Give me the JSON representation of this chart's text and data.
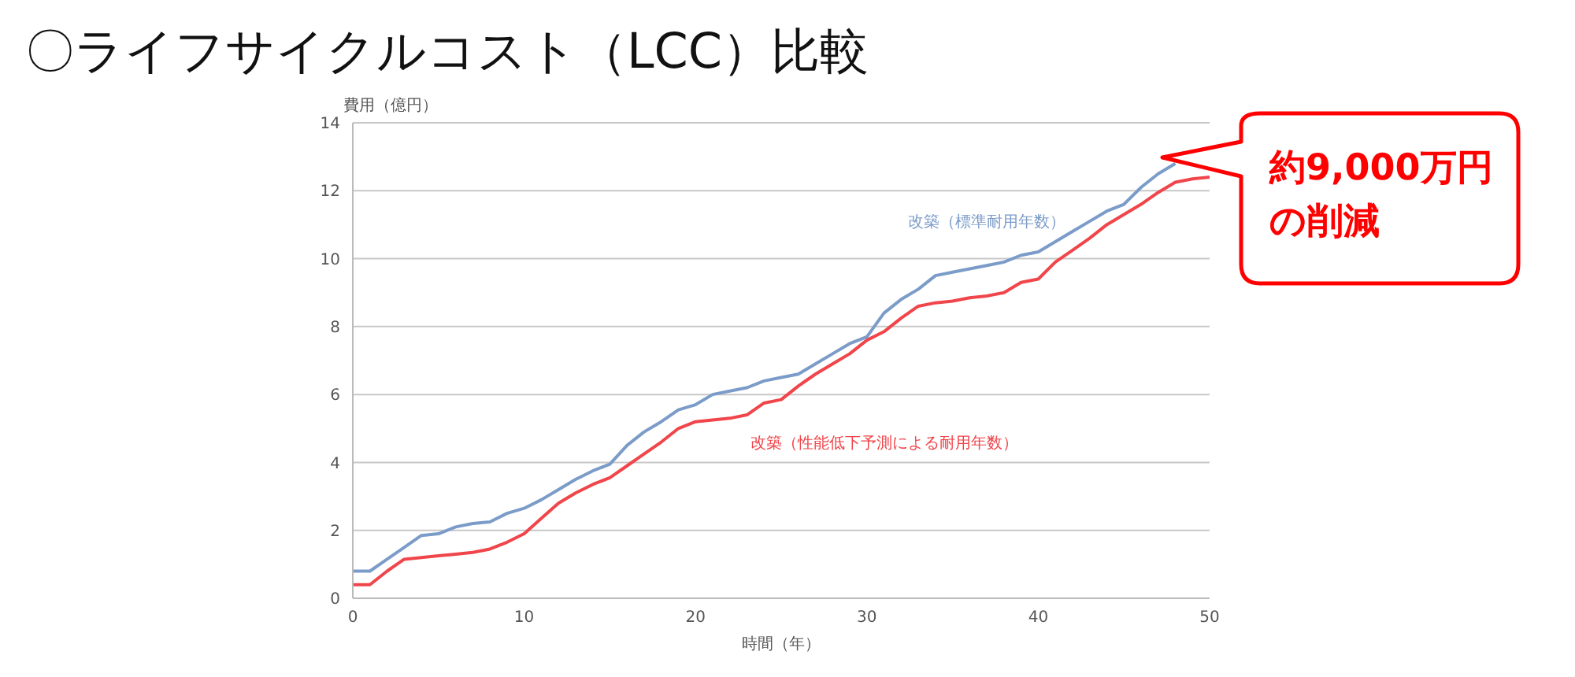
{
  "chart_data": {
    "type": "line",
    "title": "〇ライフサイクルコスト（LCC）比較",
    "xlabel": "時間（年）",
    "ylabel": "費用（億円）",
    "x": [
      0,
      1,
      2,
      3,
      4,
      5,
      6,
      7,
      8,
      9,
      10,
      11,
      12,
      13,
      14,
      15,
      16,
      17,
      18,
      19,
      20,
      21,
      22,
      23,
      24,
      25,
      26,
      27,
      28,
      29,
      30,
      31,
      32,
      33,
      34,
      35,
      36,
      37,
      38,
      39,
      40,
      41,
      42,
      43,
      44,
      45,
      46,
      47,
      48,
      49,
      50
    ],
    "series": [
      {
        "name": "改築（標準耐用年数）",
        "color": "#7b9cc9",
        "values": [
          0.8,
          0.8,
          1.15,
          1.5,
          1.85,
          1.9,
          2.1,
          2.2,
          2.25,
          2.5,
          2.65,
          2.9,
          3.2,
          3.5,
          3.75,
          3.95,
          4.5,
          4.9,
          5.2,
          5.55,
          5.7,
          6.0,
          6.1,
          6.2,
          6.4,
          6.5,
          6.6,
          6.9,
          7.2,
          7.5,
          7.7,
          8.4,
          8.8,
          9.1,
          9.5,
          9.6,
          9.7,
          9.8,
          9.9,
          10.1,
          10.2,
          10.5,
          10.8,
          11.1,
          11.4,
          11.6,
          12.1,
          12.5,
          12.8,
          null,
          null
        ]
      },
      {
        "name": "改築（性能低下予測による耐用年数）",
        "color": "#f0454a",
        "values": [
          0.4,
          0.4,
          0.8,
          1.15,
          1.2,
          1.25,
          1.3,
          1.35,
          1.45,
          1.65,
          1.9,
          2.35,
          2.8,
          3.1,
          3.35,
          3.55,
          3.9,
          4.25,
          4.6,
          5.0,
          5.2,
          5.25,
          5.3,
          5.4,
          5.75,
          5.85,
          6.25,
          6.6,
          6.9,
          7.2,
          7.6,
          7.85,
          8.25,
          8.6,
          8.7,
          8.75,
          8.85,
          8.9,
          9.0,
          9.3,
          9.4,
          9.9,
          10.25,
          10.6,
          11.0,
          11.3,
          11.6,
          11.95,
          12.25,
          12.35,
          12.4
        ]
      }
    ],
    "xlim": [
      0,
      50
    ],
    "xticks": [
      0,
      10,
      20,
      30,
      40,
      50
    ],
    "ylim": [
      0,
      14
    ],
    "yticks": [
      0,
      2,
      4,
      6,
      8,
      10,
      12,
      14
    ],
    "grid": "y",
    "legend": false,
    "marker": "none",
    "line_style": "solid",
    "annotations": [
      "約9,000万円の削減"
    ]
  }
}
